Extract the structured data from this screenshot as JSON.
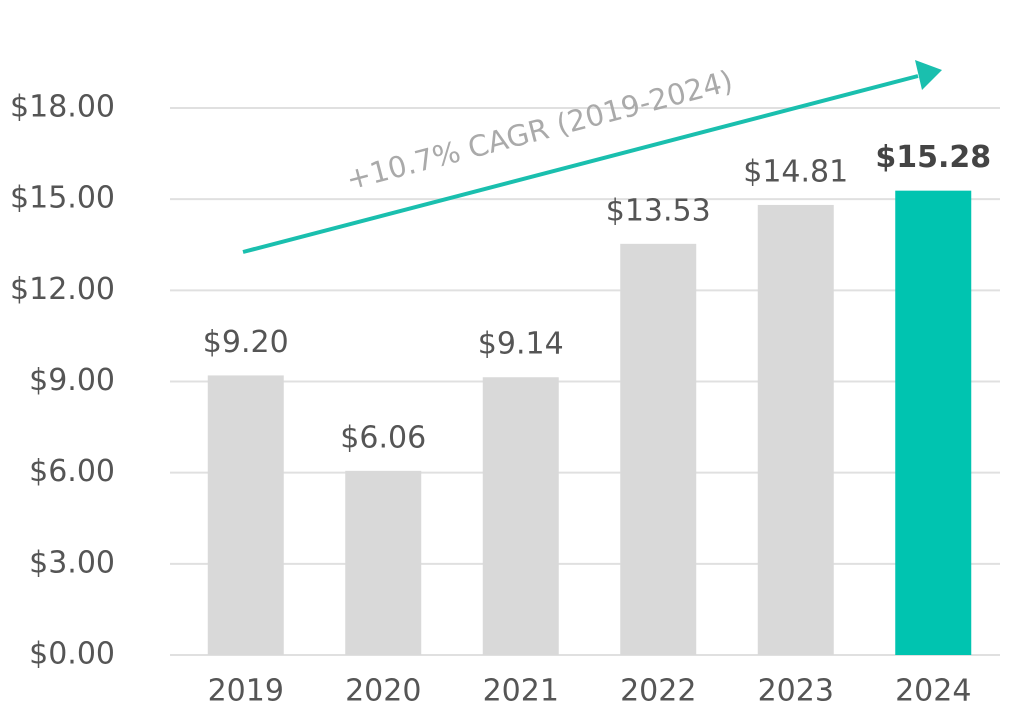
{
  "chart_data": {
    "type": "bar",
    "categories": [
      "2019",
      "2020",
      "2021",
      "2022",
      "2023",
      "2024"
    ],
    "values": [
      9.2,
      6.06,
      9.14,
      13.53,
      14.81,
      15.28
    ],
    "value_labels": [
      "$9.20",
      "$6.06",
      "$9.14",
      "$13.53",
      "$14.81",
      "$15.28"
    ],
    "colors": [
      "#d9d9d9",
      "#d9d9d9",
      "#d9d9d9",
      "#d9d9d9",
      "#d9d9d9",
      "#00c4b0"
    ],
    "ylim": [
      0,
      18
    ],
    "yticks": [
      {
        "value": 0,
        "label": "$0.00"
      },
      {
        "value": 3,
        "label": "$3.00"
      },
      {
        "value": 6,
        "label": "$6.00"
      },
      {
        "value": 9,
        "label": "$9.00"
      },
      {
        "value": 12,
        "label": "$12.00"
      },
      {
        "value": 15,
        "label": "$15.00"
      },
      {
        "value": 18,
        "label": "$18.00"
      }
    ],
    "grid": true,
    "annotation": "+10.7% CAGR (2019-2024)"
  }
}
